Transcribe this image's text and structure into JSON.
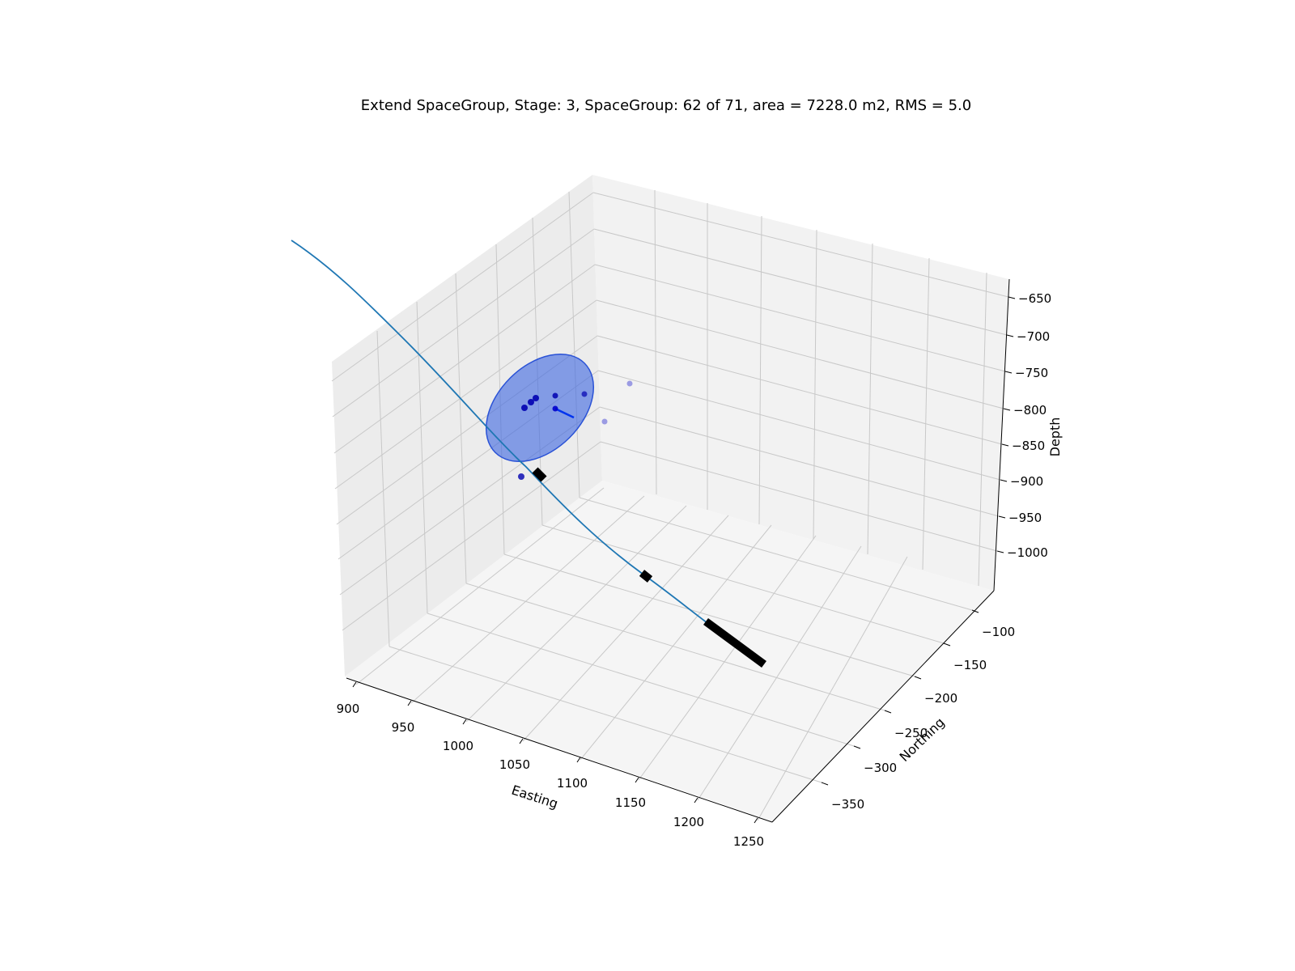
{
  "chart_data": {
    "type": "scatter",
    "title": "Extend SpaceGroup, Stage: 3, SpaceGroup: 62 of 71,   area = 7228.0 m2,   RMS = 5.0",
    "xlabel": "Easting",
    "ylabel": "Northing",
    "zlabel": "Depth",
    "x_ticks": [
      "900",
      "950",
      "1000",
      "1050",
      "1100",
      "1150",
      "1200",
      "1250"
    ],
    "y_ticks": [
      "−100",
      "−150",
      "−200",
      "−250",
      "−300",
      "−350"
    ],
    "z_ticks": [
      "−650",
      "−700",
      "−750",
      "−800",
      "−850",
      "−900",
      "−950",
      "−1000"
    ],
    "xlim": [
      895,
      1260
    ],
    "ylim": [
      -385,
      -70
    ],
    "zlim": [
      -1050,
      -640
    ],
    "grid": true,
    "colors": {
      "well": "#1f77b4",
      "stage_markers": "#000000",
      "events": "#0000cc",
      "ellipse_fill": "#4169e1",
      "pane": "#f2f2f2",
      "grid": "#c8c8c8"
    }
  }
}
